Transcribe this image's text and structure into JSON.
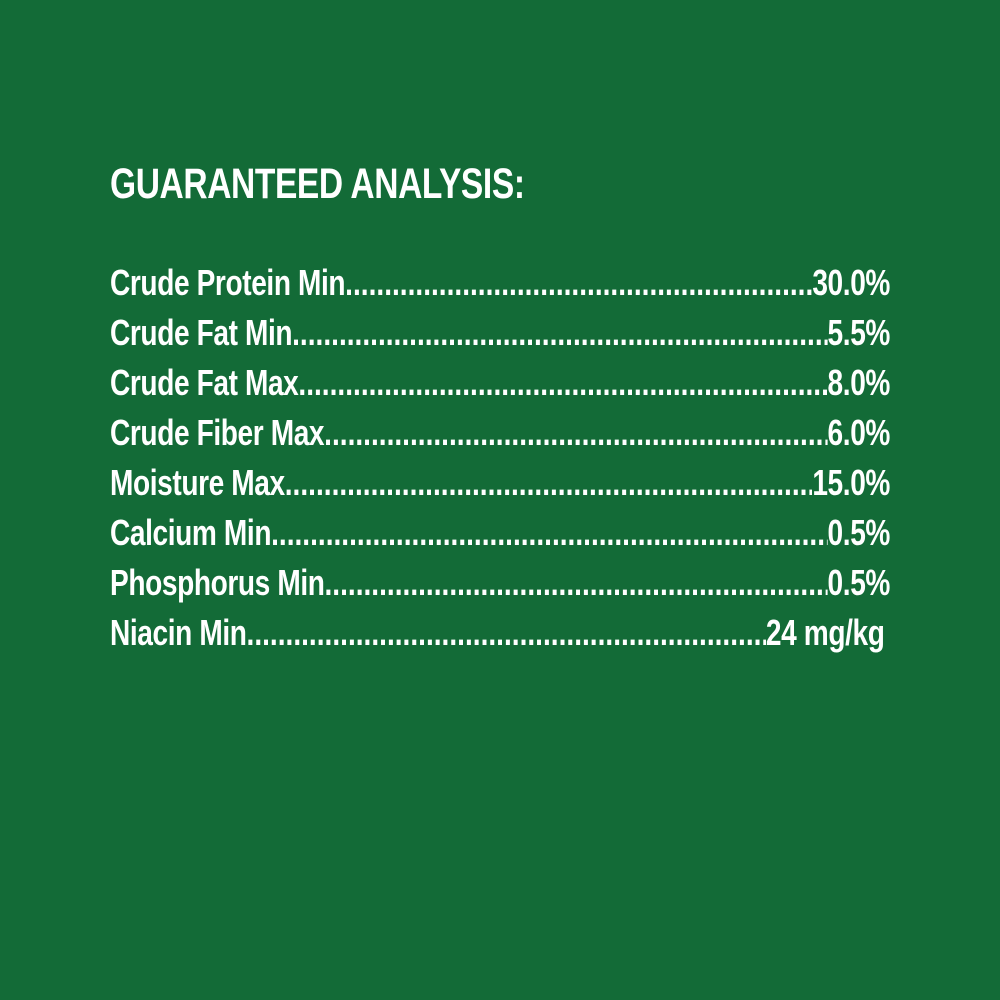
{
  "background_color": "#136b37",
  "title": "GUARANTEED ANALYSIS:",
  "rows": [
    {
      "label": "Crude Protein Min",
      "value": "30.0%"
    },
    {
      "label": "Crude Fat Min",
      "value": "5.5%"
    },
    {
      "label": "Crude Fat Max",
      "value": "8.0%"
    },
    {
      "label": "Crude Fiber Max",
      "value": "6.0%"
    },
    {
      "label": "Moisture Max",
      "value": "15.0%"
    },
    {
      "label": "Calcium Min",
      "value": "0.5%"
    },
    {
      "label": "Phosphorus Min",
      "value": "0.5%"
    },
    {
      "label": "Niacin Min",
      "value": "24 mg/kg"
    }
  ]
}
